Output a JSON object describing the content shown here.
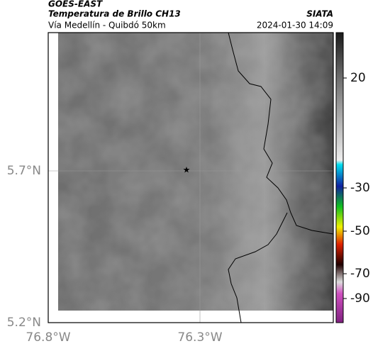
{
  "header": {
    "title": "GOES-EAST",
    "subtitle": "Temperatura de Brillo CH13",
    "source": "SIATA",
    "region": "Vía Medellín - Quibdó 50km",
    "timestamp": "2024-01-30 14:09"
  },
  "axes": {
    "lat_labels": [
      "5.7°N",
      "5.2°N"
    ],
    "lon_labels": [
      "76.8°W",
      "76.3°W"
    ]
  },
  "colorbar": {
    "ticks": [
      20,
      -30,
      -50,
      -70,
      -90
    ]
  }
}
